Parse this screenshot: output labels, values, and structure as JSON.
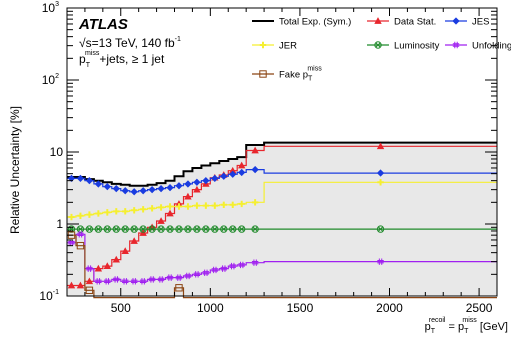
{
  "chart_data": {
    "type": "line",
    "ylabel": "Relative Uncertainty [%]",
    "xlabel": {
      "base1": "p",
      "sub1": "T",
      "sup1": "recoil",
      "mid": " = p",
      "sub2": "T",
      "sup2": "miss",
      "tail": " [GeV]"
    },
    "xlim": [
      200,
      2600
    ],
    "ylim": [
      0.1,
      1000
    ],
    "yscale": "log",
    "x_ticks": [
      500,
      1000,
      1500,
      2000,
      2500
    ],
    "y_ticks": [
      {
        "value": 0.1,
        "base": "10",
        "exp": "-1"
      },
      {
        "value": 1,
        "base": "1",
        "exp": ""
      },
      {
        "value": 10,
        "base": "10",
        "exp": ""
      },
      {
        "value": 100,
        "base": "10",
        "exp": "2"
      },
      {
        "value": 1000,
        "base": "10",
        "exp": "3"
      }
    ],
    "annotations": {
      "atlas": "ATLAS",
      "line1_a": "√s=13 TeV, 140 fb",
      "line1_sup": "-1",
      "line2_p": "p",
      "line2_sub": "T",
      "line2_sup": "miss",
      "line2_tail": "+jets, ≥ 1 jet"
    },
    "bin_edges": [
      200,
      250,
      300,
      350,
      400,
      450,
      500,
      550,
      600,
      650,
      700,
      750,
      800,
      850,
      900,
      950,
      1000,
      1050,
      1100,
      1150,
      1200,
      1300,
      2600
    ],
    "series": [
      {
        "name": "Total Exp. (Sym.)",
        "color": "#000000",
        "marker": "none",
        "fill": "#e8e8e8",
        "values": [
          4.5,
          4.5,
          4.2,
          4.0,
          3.8,
          3.6,
          3.5,
          3.4,
          3.4,
          3.5,
          3.7,
          4.0,
          4.6,
          5.4,
          6.0,
          6.5,
          7.0,
          7.5,
          8.0,
          8.5,
          12.5,
          13.5
        ]
      },
      {
        "name": "Data Stat.",
        "color": "#e8262d",
        "marker": "triangle",
        "values": [
          0.14,
          0.14,
          0.16,
          0.24,
          0.26,
          0.32,
          0.42,
          0.58,
          0.75,
          0.9,
          1.1,
          1.4,
          1.9,
          2.4,
          3.0,
          3.6,
          4.4,
          4.8,
          5.5,
          6.5,
          10.5,
          12.0
        ]
      },
      {
        "name": "JES",
        "color": "#1a3ce0",
        "marker": "diamond",
        "values": [
          4.3,
          4.3,
          4.0,
          3.6,
          3.3,
          3.1,
          2.9,
          2.8,
          2.9,
          3.0,
          3.1,
          3.2,
          3.4,
          3.6,
          3.8,
          4.0,
          4.3,
          4.6,
          4.9,
          5.2,
          5.7,
          5.1
        ]
      },
      {
        "name": "JER",
        "color": "#f5ef30",
        "marker": "cross",
        "values": [
          1.25,
          1.3,
          1.35,
          1.4,
          1.45,
          1.5,
          1.5,
          1.55,
          1.6,
          1.65,
          1.7,
          1.75,
          1.75,
          1.75,
          1.8,
          1.8,
          1.8,
          1.85,
          1.85,
          1.9,
          2.0,
          3.8
        ]
      },
      {
        "name": "Luminosity",
        "color": "#1f8a2a",
        "marker": "circlex",
        "values": [
          0.85,
          0.85,
          0.85,
          0.85,
          0.85,
          0.85,
          0.85,
          0.85,
          0.85,
          0.85,
          0.85,
          0.85,
          0.85,
          0.85,
          0.85,
          0.85,
          0.85,
          0.85,
          0.85,
          0.85,
          0.85,
          0.85
        ]
      },
      {
        "name": "Unfolding",
        "color": "#a020f0",
        "marker": "hash",
        "values": [
          0.55,
          0.72,
          0.24,
          0.16,
          0.16,
          0.17,
          0.16,
          0.16,
          0.16,
          0.17,
          0.17,
          0.18,
          0.18,
          0.19,
          0.2,
          0.21,
          0.23,
          0.24,
          0.26,
          0.27,
          0.29,
          0.3
        ]
      },
      {
        "name": "Fake p_T^miss",
        "legend_label": "Fake p",
        "legend_sub": "T",
        "legend_sup": "miss",
        "color": "#8b4513",
        "marker": "square",
        "values": [
          0.7,
          0.5,
          0.12,
          0.085,
          0.085,
          0.085,
          0.085,
          0.085,
          0.085,
          0.085,
          0.085,
          0.085,
          0.13,
          0.085,
          0.085,
          0.085,
          0.085,
          0.085,
          0.085,
          0.085,
          0.085,
          0.085
        ]
      }
    ]
  }
}
